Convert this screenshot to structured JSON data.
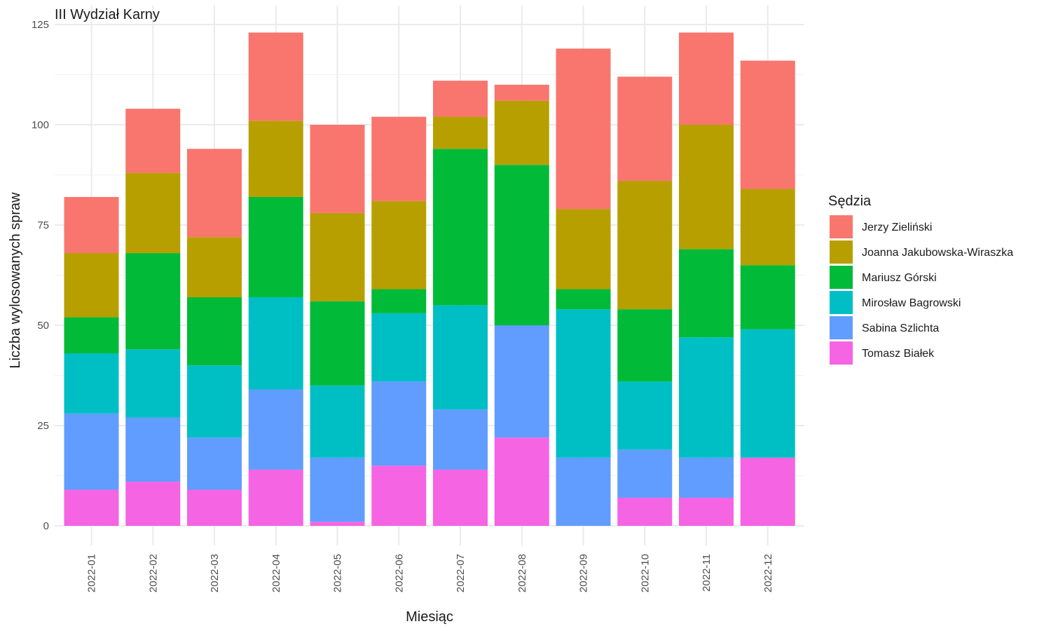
{
  "chart_data": {
    "type": "bar",
    "stacked": true,
    "title": "III Wydział Karny",
    "xlabel": "Miesiąc",
    "ylabel": "Liczba wylosowanych spraw",
    "ylim": [
      0,
      125
    ],
    "yticks": [
      0,
      25,
      50,
      75,
      100,
      125
    ],
    "grid": true,
    "legend_title": "Sędzia",
    "legend_position": "right",
    "categories": [
      "2022-01",
      "2022-02",
      "2022-03",
      "2022-04",
      "2022-05",
      "2022-06",
      "2022-07",
      "2022-08",
      "2022-09",
      "2022-10",
      "2022-11",
      "2022-12"
    ],
    "series": [
      {
        "name": "Tomasz Białek",
        "color": "#F564E3",
        "values": [
          9,
          11,
          9,
          14,
          1,
          15,
          14,
          22,
          0,
          7,
          7,
          17
        ]
      },
      {
        "name": "Sabina Szlichta",
        "color": "#619CFF",
        "values": [
          19,
          16,
          13,
          20,
          16,
          21,
          15,
          28,
          17,
          12,
          10,
          0
        ]
      },
      {
        "name": "Mirosław Bagrowski",
        "color": "#00BFC4",
        "values": [
          15,
          17,
          18,
          23,
          18,
          17,
          26,
          0,
          37,
          17,
          30,
          32
        ]
      },
      {
        "name": "Mariusz Górski",
        "color": "#00BA38",
        "values": [
          9,
          24,
          17,
          25,
          21,
          6,
          39,
          40,
          5,
          18,
          22,
          16
        ]
      },
      {
        "name": "Joanna Jakubowska-Wiraszka",
        "color": "#B79F00",
        "values": [
          16,
          20,
          15,
          19,
          22,
          22,
          8,
          16,
          20,
          32,
          31,
          19
        ]
      },
      {
        "name": "Jerzy Zieliński",
        "color": "#F8766D",
        "values": [
          14,
          16,
          22,
          22,
          22,
          21,
          9,
          4,
          40,
          26,
          23,
          32
        ]
      }
    ],
    "legend_order": [
      "Jerzy Zieliński",
      "Joanna Jakubowska-Wiraszka",
      "Mariusz Górski",
      "Mirosław Bagrowski",
      "Sabina Szlichta",
      "Tomasz Białek"
    ]
  }
}
